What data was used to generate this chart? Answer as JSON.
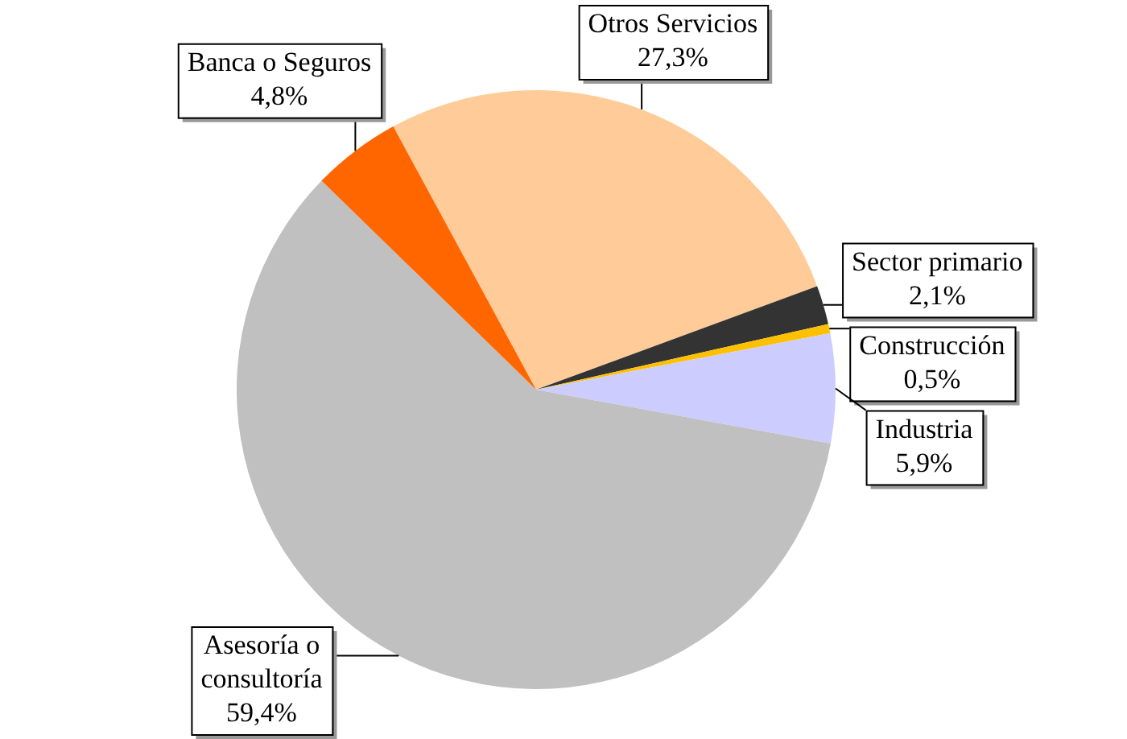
{
  "chart_data": {
    "type": "pie",
    "categories": [
      "Otros Servicios",
      "Sector primario",
      "Construcción",
      "Industria",
      "Asesoría o consultoría",
      "Banca o Seguros"
    ],
    "values": [
      27.3,
      2.1,
      0.5,
      5.9,
      59.4,
      4.8
    ],
    "value_labels": [
      "27,3%",
      "2,1%",
      "0,5%",
      "5,9%",
      "59,4%",
      "4,8%"
    ],
    "colors": [
      "#ffcc99",
      "#333333",
      "#ffc000",
      "#ccccff",
      "#c0c0c0",
      "#ff6600"
    ],
    "legend": false
  }
}
